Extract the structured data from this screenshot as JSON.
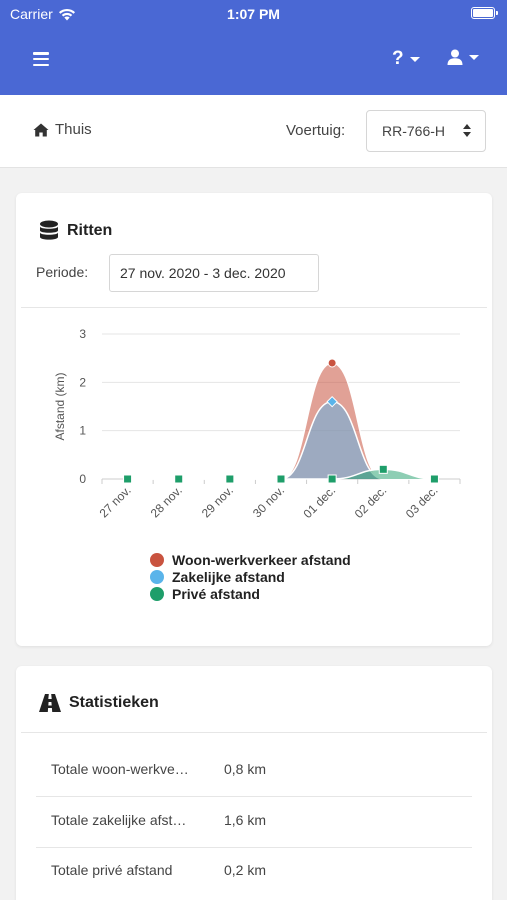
{
  "status_bar": {
    "carrier": "Carrier",
    "time": "1:07 PM"
  },
  "header": {
    "help_label": "?"
  },
  "subbar": {
    "home_label": "Thuis",
    "vehicle_label": "Voertuig:",
    "vehicle_value": "RR-766-H"
  },
  "rides": {
    "title": "Ritten",
    "period_label": "Periode:",
    "period_value": "27 nov. 2020 - 3 dec. 2020"
  },
  "colors": {
    "header": "#4a68d4",
    "woon_werk": "#c9533f",
    "zakelijk": "#5ab4ea",
    "prive": "#1e9e6a"
  },
  "chart_data": {
    "type": "area",
    "categories": [
      "27 nov.",
      "28 nov.",
      "29 nov.",
      "30 nov.",
      "01 dec.",
      "02 dec.",
      "03 dec."
    ],
    "ylabel": "Afstand (km)",
    "ylim": [
      0,
      3
    ],
    "yticks": [
      "0",
      "1",
      "2",
      "3"
    ],
    "grid": true,
    "legend_position": "bottom",
    "series": [
      {
        "name": "Woon-werkverkeer afstand",
        "values": [
          0,
          0,
          0,
          0,
          2.4,
          0,
          0
        ],
        "color": "#c9533f"
      },
      {
        "name": "Zakelijke afstand",
        "values": [
          0,
          0,
          0,
          0,
          1.6,
          0,
          0
        ],
        "color": "#5ab4ea"
      },
      {
        "name": "Privé afstand",
        "values": [
          0,
          0,
          0,
          0,
          0,
          0.2,
          0
        ],
        "color": "#1e9e6a"
      }
    ]
  },
  "stats": {
    "title": "Statistieken",
    "rows": [
      {
        "label": "Totale woon-werkverkeer afstand",
        "value": "0,8 km"
      },
      {
        "label": "Totale zakelijke afstand",
        "value": "1,6 km"
      },
      {
        "label": "Totale privé afstand",
        "value": "0,2 km"
      }
    ]
  }
}
